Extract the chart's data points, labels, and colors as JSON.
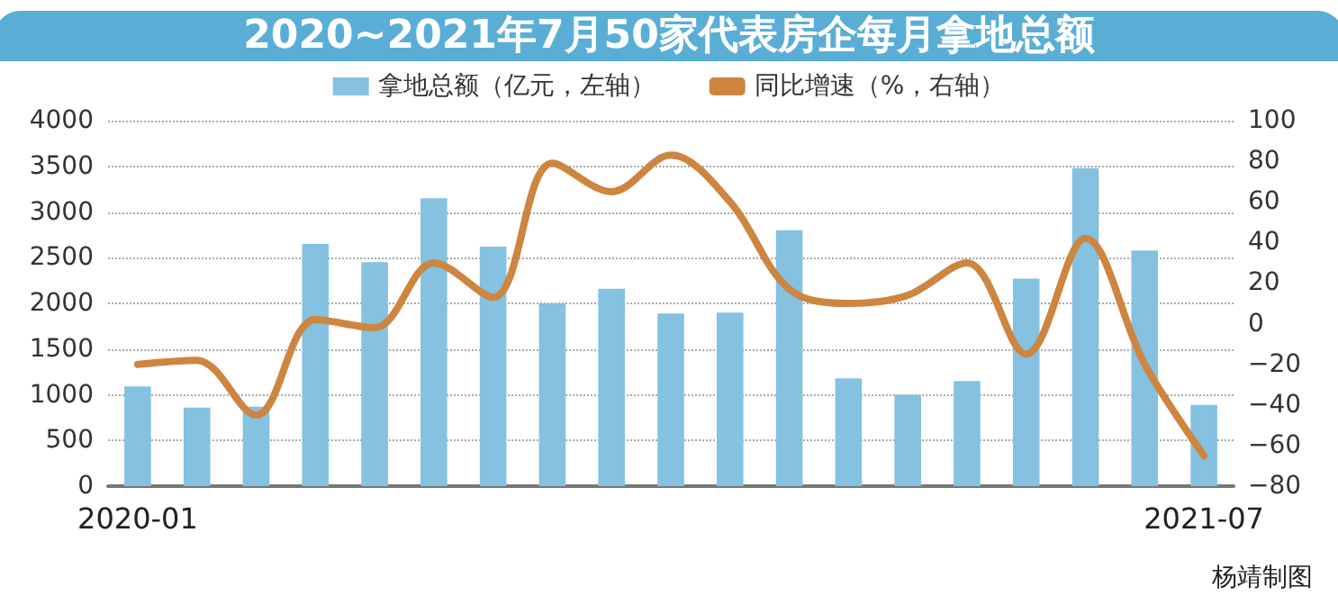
{
  "chart_data": {
    "type": "bar",
    "title": "2020~2021年7月50家代表房企每月拿地总额",
    "categories": [
      "2020-01",
      null,
      null,
      null,
      null,
      null,
      null,
      null,
      null,
      null,
      null,
      null,
      null,
      null,
      null,
      null,
      null,
      null,
      "2021-07"
    ],
    "series": [
      {
        "name": "拿地总额（亿元，左轴）",
        "color": "#85c1e0",
        "values": [
          1090,
          860,
          870,
          2650,
          2450,
          3150,
          2620,
          2000,
          2160,
          1890,
          1900,
          2800,
          1180,
          1000,
          1150,
          2270,
          3480,
          2580,
          890
        ]
      },
      {
        "name": "同比增速（%，右轴）",
        "type": "line",
        "axis": "y2",
        "color": "#cd8540",
        "values": [
          -20,
          -18,
          -45,
          2,
          -2,
          30,
          13,
          79,
          65,
          83,
          60,
          17,
          10,
          14,
          30,
          -15,
          42,
          -20,
          -65
        ]
      }
    ],
    "ylim": [
      0,
      4000
    ],
    "yticks": [
      0,
      500,
      1000,
      1500,
      2000,
      2500,
      3000,
      3500,
      4000
    ],
    "y2lim": [
      -80,
      100
    ],
    "y2ticks": [
      -80,
      -60,
      -40,
      -20,
      0,
      20,
      40,
      60,
      80,
      100
    ],
    "grid": "y",
    "legend": "top",
    "marker": "none",
    "annotations": [
      "杨靖制图"
    ]
  }
}
